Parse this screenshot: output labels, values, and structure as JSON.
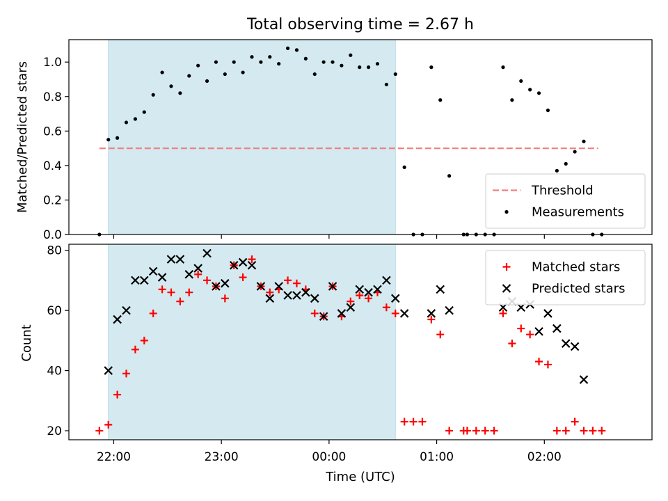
{
  "chart_data": {
    "title": "Total observing time = 2.67 h",
    "xlabel": "Time (UTC)",
    "x_ticks": [
      "22:00",
      "23:00",
      "00:00",
      "01:00",
      "02:00"
    ],
    "x_range": [
      "21:35",
      "03:00"
    ],
    "shaded_region": {
      "start": "21:57",
      "end": "00:37",
      "color": "#d4eaf0"
    },
    "colors": {
      "threshold": "#f08080",
      "measurements": "#000000",
      "matched": "#ff0000",
      "predicted": "#000000"
    },
    "panels": [
      {
        "type": "scatter",
        "ylabel": "Matched/Predicted stars",
        "ylim": [
          0,
          1.13
        ],
        "y_ticks": [
          "0.0",
          "0.2",
          "0.4",
          "0.6",
          "0.8",
          "1.0"
        ],
        "legend_position": "lower-right",
        "threshold": {
          "name": "Threshold",
          "value": 0.5,
          "x_start": "21:52",
          "x_end": "02:30"
        },
        "series": [
          {
            "name": "Measurements",
            "marker": "dot",
            "points": [
              [
                "21:52",
                0.0
              ],
              [
                "21:57",
                0.55
              ],
              [
                "22:02",
                0.56
              ],
              [
                "22:07",
                0.65
              ],
              [
                "22:12",
                0.67
              ],
              [
                "22:17",
                0.71
              ],
              [
                "22:22",
                0.81
              ],
              [
                "22:27",
                0.94
              ],
              [
                "22:32",
                0.86
              ],
              [
                "22:37",
                0.82
              ],
              [
                "22:42",
                0.92
              ],
              [
                "22:47",
                0.98
              ],
              [
                "22:52",
                0.89
              ],
              [
                "22:57",
                1.0
              ],
              [
                "23:02",
                0.93
              ],
              [
                "23:07",
                1.0
              ],
              [
                "23:12",
                0.94
              ],
              [
                "23:17",
                1.03
              ],
              [
                "23:22",
                1.0
              ],
              [
                "23:27",
                1.03
              ],
              [
                "23:32",
                0.99
              ],
              [
                "23:37",
                1.08
              ],
              [
                "23:42",
                1.07
              ],
              [
                "23:47",
                1.02
              ],
              [
                "23:52",
                0.93
              ],
              [
                "23:57",
                1.0
              ],
              [
                "00:02",
                1.0
              ],
              [
                "00:07",
                0.98
              ],
              [
                "00:12",
                1.04
              ],
              [
                "00:17",
                0.97
              ],
              [
                "00:22",
                0.97
              ],
              [
                "00:27",
                0.99
              ],
              [
                "00:32",
                0.87
              ],
              [
                "00:37",
                0.93
              ],
              [
                "00:42",
                0.39
              ],
              [
                "00:47",
                0.0
              ],
              [
                "00:52",
                0.0
              ],
              [
                "00:57",
                0.97
              ],
              [
                "01:02",
                0.78
              ],
              [
                "01:07",
                0.34
              ],
              [
                "01:15",
                0.0
              ],
              [
                "01:17",
                0.0
              ],
              [
                "01:22",
                0.0
              ],
              [
                "01:27",
                0.0
              ],
              [
                "01:32",
                0.0
              ],
              [
                "01:37",
                0.97
              ],
              [
                "01:42",
                0.78
              ],
              [
                "01:47",
                0.89
              ],
              [
                "01:52",
                0.84
              ],
              [
                "01:57",
                0.82
              ],
              [
                "02:02",
                0.72
              ],
              [
                "02:07",
                0.37
              ],
              [
                "02:12",
                0.41
              ],
              [
                "02:17",
                0.48
              ],
              [
                "02:22",
                0.54
              ],
              [
                "02:27",
                0.0
              ],
              [
                "02:32",
                0.0
              ]
            ]
          }
        ]
      },
      {
        "type": "scatter",
        "ylabel": "Count",
        "ylim": [
          17,
          82
        ],
        "y_ticks": [
          "20",
          "40",
          "60",
          "80"
        ],
        "legend_position": "upper-right",
        "series": [
          {
            "name": "Matched stars",
            "marker": "plus",
            "points": [
              [
                "21:52",
                20
              ],
              [
                "21:57",
                22
              ],
              [
                "22:02",
                32
              ],
              [
                "22:07",
                39
              ],
              [
                "22:12",
                47
              ],
              [
                "22:17",
                50
              ],
              [
                "22:22",
                59
              ],
              [
                "22:27",
                67
              ],
              [
                "22:32",
                66
              ],
              [
                "22:37",
                63
              ],
              [
                "22:42",
                66
              ],
              [
                "22:47",
                72
              ],
              [
                "22:52",
                70
              ],
              [
                "22:57",
                68
              ],
              [
                "23:02",
                64
              ],
              [
                "23:07",
                75
              ],
              [
                "23:12",
                71
              ],
              [
                "23:17",
                77
              ],
              [
                "23:22",
                68
              ],
              [
                "23:27",
                66
              ],
              [
                "23:32",
                67
              ],
              [
                "23:37",
                70
              ],
              [
                "23:42",
                69
              ],
              [
                "23:47",
                67
              ],
              [
                "23:52",
                59
              ],
              [
                "23:57",
                58
              ],
              [
                "00:02",
                68
              ],
              [
                "00:07",
                58
              ],
              [
                "00:12",
                63
              ],
              [
                "00:17",
                65
              ],
              [
                "00:22",
                64
              ],
              [
                "00:27",
                66
              ],
              [
                "00:32",
                61
              ],
              [
                "00:37",
                59
              ],
              [
                "00:42",
                23
              ],
              [
                "00:47",
                23
              ],
              [
                "00:52",
                23
              ],
              [
                "00:57",
                57
              ],
              [
                "01:02",
                52
              ],
              [
                "01:07",
                20
              ],
              [
                "01:15",
                20
              ],
              [
                "01:17",
                20
              ],
              [
                "01:22",
                20
              ],
              [
                "01:27",
                20
              ],
              [
                "01:32",
                20
              ],
              [
                "01:37",
                59
              ],
              [
                "01:42",
                49
              ],
              [
                "01:47",
                54
              ],
              [
                "01:52",
                52
              ],
              [
                "01:57",
                43
              ],
              [
                "02:02",
                42
              ],
              [
                "02:07",
                20
              ],
              [
                "02:12",
                20
              ],
              [
                "02:17",
                23
              ],
              [
                "02:22",
                20
              ],
              [
                "02:27",
                20
              ],
              [
                "02:32",
                20
              ]
            ]
          },
          {
            "name": "Predicted stars",
            "marker": "x",
            "points": [
              [
                "21:57",
                40
              ],
              [
                "22:02",
                57
              ],
              [
                "22:07",
                60
              ],
              [
                "22:12",
                70
              ],
              [
                "22:17",
                70
              ],
              [
                "22:22",
                73
              ],
              [
                "22:27",
                71
              ],
              [
                "22:32",
                77
              ],
              [
                "22:37",
                77
              ],
              [
                "22:42",
                72
              ],
              [
                "22:47",
                74
              ],
              [
                "22:52",
                79
              ],
              [
                "22:57",
                68
              ],
              [
                "23:02",
                69
              ],
              [
                "23:07",
                75
              ],
              [
                "23:12",
                76
              ],
              [
                "23:17",
                75
              ],
              [
                "23:22",
                68
              ],
              [
                "23:27",
                64
              ],
              [
                "23:32",
                68
              ],
              [
                "23:37",
                65
              ],
              [
                "23:42",
                65
              ],
              [
                "23:47",
                66
              ],
              [
                "23:52",
                64
              ],
              [
                "23:57",
                58
              ],
              [
                "00:02",
                68
              ],
              [
                "00:07",
                59
              ],
              [
                "00:12",
                61
              ],
              [
                "00:17",
                67
              ],
              [
                "00:22",
                66
              ],
              [
                "00:27",
                67
              ],
              [
                "00:32",
                70
              ],
              [
                "00:37",
                64
              ],
              [
                "00:42",
                59
              ],
              [
                "00:57",
                59
              ],
              [
                "01:02",
                67
              ],
              [
                "01:07",
                60
              ],
              [
                "01:37",
                61
              ],
              [
                "01:42",
                63
              ],
              [
                "01:47",
                61
              ],
              [
                "01:52",
                62
              ],
              [
                "01:57",
                53
              ],
              [
                "02:02",
                59
              ],
              [
                "02:07",
                54
              ],
              [
                "02:12",
                49
              ],
              [
                "02:17",
                48
              ],
              [
                "02:22",
                37
              ]
            ]
          }
        ]
      }
    ]
  }
}
